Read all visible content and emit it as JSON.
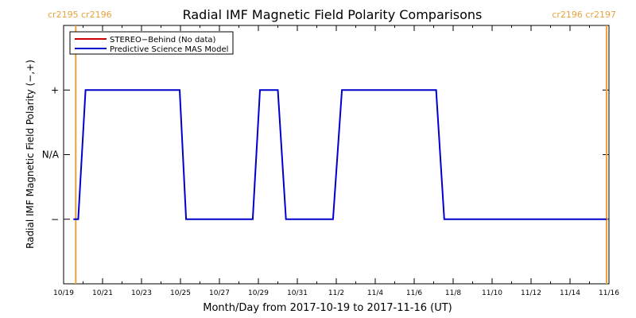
{
  "chart_data": {
    "type": "line",
    "title": "Radial IMF Magnetic Field Polarity Comparisons",
    "xlabel": "Month/Day from 2017-10-19 to 2017-11-16 (UT)",
    "ylabel": "Radial IMF Magnetic Field Polarity (−,+)",
    "xlim": [
      "2017-10-19",
      "2017-11-16"
    ],
    "x_ticks": [
      {
        "date": "2017-10-19",
        "label": "10/19"
      },
      {
        "date": "2017-10-21",
        "label": "10/21"
      },
      {
        "date": "2017-10-23",
        "label": "10/23"
      },
      {
        "date": "2017-10-25",
        "label": "10/25"
      },
      {
        "date": "2017-10-27",
        "label": "10/27"
      },
      {
        "date": "2017-10-29",
        "label": "10/29"
      },
      {
        "date": "2017-10-31",
        "label": "10/31"
      },
      {
        "date": "2017-11-02",
        "label": "11/2"
      },
      {
        "date": "2017-11-04",
        "label": "11/4"
      },
      {
        "date": "2017-11-06",
        "label": "11/6"
      },
      {
        "date": "2017-11-08",
        "label": "11/8"
      },
      {
        "date": "2017-11-10",
        "label": "11/10"
      },
      {
        "date": "2017-11-12",
        "label": "11/12"
      },
      {
        "date": "2017-11-14",
        "label": "11/14"
      },
      {
        "date": "2017-11-16",
        "label": "11/16"
      }
    ],
    "y_levels": [
      {
        "value": 1,
        "label": "+"
      },
      {
        "value": 0,
        "label": "N/A"
      },
      {
        "value": -1,
        "label": "−"
      }
    ],
    "ylim": [
      -2,
      2
    ],
    "legend_position": "top-left",
    "series": [
      {
        "name": "STEREO−Behind (No data)",
        "color": "#cc0000",
        "points": []
      },
      {
        "name": "Predictive Science MAS Model",
        "color": "#0000cc",
        "points": [
          {
            "x": "2017-10-19 12:00",
            "y": -1
          },
          {
            "x": "2017-10-19 18:00",
            "y": -1
          },
          {
            "x": "2017-10-20 03:00",
            "y": 1
          },
          {
            "x": "2017-10-24 23:00",
            "y": 1
          },
          {
            "x": "2017-10-25 07:00",
            "y": -1
          },
          {
            "x": "2017-10-28 17:00",
            "y": -1
          },
          {
            "x": "2017-10-29 02:00",
            "y": 1
          },
          {
            "x": "2017-10-30 00:00",
            "y": 1
          },
          {
            "x": "2017-10-30 10:00",
            "y": -1
          },
          {
            "x": "2017-11-01 20:00",
            "y": -1
          },
          {
            "x": "2017-11-02 07:00",
            "y": 1
          },
          {
            "x": "2017-11-07 03:00",
            "y": 1
          },
          {
            "x": "2017-11-07 13:00",
            "y": -1
          },
          {
            "x": "2017-11-15 21:00",
            "y": -1
          }
        ]
      }
    ],
    "carrington_markers": [
      {
        "date": "2017-10-19 15:00",
        "color": "#e8a23c",
        "label": "cr2195 cr2196",
        "label_side": "left"
      },
      {
        "date": "2017-11-15 21:00",
        "color": "#e8a23c",
        "label": "cr2196 cr2197",
        "label_side": "right"
      }
    ],
    "grid": false
  }
}
